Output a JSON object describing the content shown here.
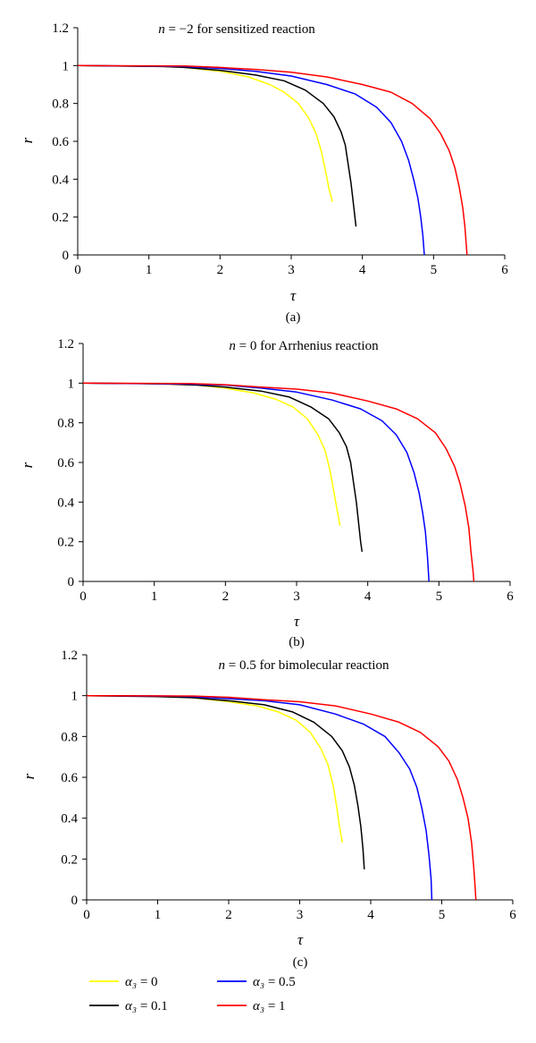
{
  "chart_data": [
    {
      "type": "line",
      "title": "n = −2 for sensitized reaction",
      "title_parts": {
        "var": "n",
        "rest": " = −2 for sensitized reaction"
      },
      "xlabel": "τ",
      "ylabel": "r",
      "xlim": [
        0,
        6
      ],
      "ylim": [
        0,
        1.2
      ],
      "xticks": [
        "0",
        "1",
        "2",
        "3",
        "4",
        "5",
        "6"
      ],
      "yticks": [
        "0",
        "0.2",
        "0.4",
        "0.6",
        "0.8",
        "1",
        "1.2"
      ],
      "caption": "(a)",
      "grid": false,
      "series": [
        {
          "color": "#ffff00",
          "points": [
            [
              0,
              1
            ],
            [
              1.2,
              0.995
            ],
            [
              1.5,
              0.99
            ],
            [
              2.0,
              0.97
            ],
            [
              2.4,
              0.94
            ],
            [
              2.7,
              0.9
            ],
            [
              2.9,
              0.86
            ],
            [
              3.1,
              0.8
            ],
            [
              3.25,
              0.72
            ],
            [
              3.35,
              0.64
            ],
            [
              3.42,
              0.55
            ],
            [
              3.48,
              0.45
            ],
            [
              3.53,
              0.35
            ],
            [
              3.58,
              0.28
            ]
          ]
        },
        {
          "color": "#000000",
          "points": [
            [
              0,
              1
            ],
            [
              1.2,
              0.995
            ],
            [
              1.5,
              0.99
            ],
            [
              2.0,
              0.975
            ],
            [
              2.5,
              0.95
            ],
            [
              2.9,
              0.92
            ],
            [
              3.2,
              0.87
            ],
            [
              3.45,
              0.8
            ],
            [
              3.6,
              0.73
            ],
            [
              3.7,
              0.65
            ],
            [
              3.76,
              0.58
            ],
            [
              3.8,
              0.48
            ],
            [
              3.84,
              0.38
            ],
            [
              3.88,
              0.25
            ],
            [
              3.91,
              0.15
            ]
          ]
        },
        {
          "color": "#0000ff",
          "points": [
            [
              0,
              1
            ],
            [
              1.5,
              0.995
            ],
            [
              2.0,
              0.985
            ],
            [
              2.5,
              0.97
            ],
            [
              3.0,
              0.945
            ],
            [
              3.5,
              0.9
            ],
            [
              3.9,
              0.85
            ],
            [
              4.2,
              0.78
            ],
            [
              4.4,
              0.7
            ],
            [
              4.55,
              0.6
            ],
            [
              4.65,
              0.5
            ],
            [
              4.72,
              0.4
            ],
            [
              4.78,
              0.3
            ],
            [
              4.82,
              0.2
            ],
            [
              4.85,
              0.1
            ],
            [
              4.87,
              0
            ]
          ]
        },
        {
          "color": "#ff0000",
          "points": [
            [
              0,
              1
            ],
            [
              1.5,
              0.998
            ],
            [
              2.0,
              0.99
            ],
            [
              2.5,
              0.98
            ],
            [
              3.0,
              0.965
            ],
            [
              3.5,
              0.94
            ],
            [
              4.0,
              0.9
            ],
            [
              4.4,
              0.86
            ],
            [
              4.7,
              0.8
            ],
            [
              4.95,
              0.72
            ],
            [
              5.1,
              0.64
            ],
            [
              5.22,
              0.55
            ],
            [
              5.3,
              0.46
            ],
            [
              5.36,
              0.36
            ],
            [
              5.41,
              0.25
            ],
            [
              5.44,
              0.15
            ],
            [
              5.46,
              0.05
            ],
            [
              5.47,
              0
            ]
          ]
        }
      ]
    },
    {
      "type": "line",
      "title": "n = 0 for Arrhenius reaction",
      "title_parts": {
        "var": "n",
        "rest": " = 0 for Arrhenius reaction"
      },
      "xlabel": "τ",
      "ylabel": "r",
      "xlim": [
        0,
        6
      ],
      "ylim": [
        0,
        1.2
      ],
      "xticks": [
        "0",
        "1",
        "2",
        "3",
        "4",
        "5",
        "6"
      ],
      "yticks": [
        "0",
        "0.2",
        "0.4",
        "0.6",
        "0.8",
        "1",
        "1.2"
      ],
      "caption": "(b)",
      "grid": false,
      "series": [
        {
          "color": "#ffff00",
          "points": [
            [
              0,
              1
            ],
            [
              0.8,
              0.998
            ],
            [
              1.2,
              0.995
            ],
            [
              1.6,
              0.99
            ],
            [
              2.0,
              0.975
            ],
            [
              2.4,
              0.95
            ],
            [
              2.7,
              0.92
            ],
            [
              2.95,
              0.88
            ],
            [
              3.15,
              0.82
            ],
            [
              3.3,
              0.74
            ],
            [
              3.4,
              0.66
            ],
            [
              3.47,
              0.56
            ],
            [
              3.52,
              0.46
            ],
            [
              3.57,
              0.36
            ],
            [
              3.61,
              0.28
            ]
          ]
        },
        {
          "color": "#000000",
          "points": [
            [
              0,
              1
            ],
            [
              0.8,
              0.998
            ],
            [
              1.2,
              0.995
            ],
            [
              1.6,
              0.99
            ],
            [
              2.0,
              0.98
            ],
            [
              2.5,
              0.96
            ],
            [
              2.9,
              0.93
            ],
            [
              3.2,
              0.88
            ],
            [
              3.45,
              0.82
            ],
            [
              3.6,
              0.75
            ],
            [
              3.7,
              0.68
            ],
            [
              3.76,
              0.6
            ],
            [
              3.8,
              0.5
            ],
            [
              3.84,
              0.4
            ],
            [
              3.87,
              0.3
            ],
            [
              3.9,
              0.2
            ],
            [
              3.92,
              0.15
            ]
          ]
        },
        {
          "color": "#0000ff",
          "points": [
            [
              0,
              1
            ],
            [
              1.5,
              0.995
            ],
            [
              2.0,
              0.99
            ],
            [
              2.5,
              0.975
            ],
            [
              3.0,
              0.955
            ],
            [
              3.5,
              0.915
            ],
            [
              3.9,
              0.87
            ],
            [
              4.2,
              0.81
            ],
            [
              4.4,
              0.74
            ],
            [
              4.55,
              0.65
            ],
            [
              4.65,
              0.55
            ],
            [
              4.72,
              0.45
            ],
            [
              4.77,
              0.35
            ],
            [
              4.81,
              0.25
            ],
            [
              4.84,
              0.12
            ],
            [
              4.86,
              0
            ]
          ]
        },
        {
          "color": "#ff0000",
          "points": [
            [
              0,
              1
            ],
            [
              1.5,
              0.998
            ],
            [
              2.0,
              0.992
            ],
            [
              2.5,
              0.98
            ],
            [
              3.0,
              0.97
            ],
            [
              3.5,
              0.95
            ],
            [
              4.0,
              0.91
            ],
            [
              4.4,
              0.87
            ],
            [
              4.7,
              0.82
            ],
            [
              4.95,
              0.75
            ],
            [
              5.1,
              0.67
            ],
            [
              5.22,
              0.58
            ],
            [
              5.3,
              0.49
            ],
            [
              5.37,
              0.38
            ],
            [
              5.42,
              0.27
            ],
            [
              5.45,
              0.15
            ],
            [
              5.48,
              0.05
            ],
            [
              5.49,
              0
            ]
          ]
        }
      ]
    },
    {
      "type": "line",
      "title": "n = 0.5 for bimolecular reaction",
      "title_parts": {
        "var": "n",
        "rest": " = 0.5 for bimolecular reaction"
      },
      "xlabel": "τ",
      "ylabel": "r",
      "xlim": [
        0,
        6
      ],
      "ylim": [
        0,
        1.2
      ],
      "xticks": [
        "0",
        "1",
        "2",
        "3",
        "4",
        "5",
        "6"
      ],
      "yticks": [
        "0",
        "0.2",
        "0.4",
        "0.6",
        "0.8",
        "1",
        "1.2"
      ],
      "caption": "(c)",
      "grid": false,
      "series": [
        {
          "color": "#ffff00",
          "points": [
            [
              0,
              1
            ],
            [
              1.0,
              0.998
            ],
            [
              1.5,
              0.99
            ],
            [
              2.0,
              0.97
            ],
            [
              2.4,
              0.95
            ],
            [
              2.7,
              0.92
            ],
            [
              2.95,
              0.88
            ],
            [
              3.15,
              0.82
            ],
            [
              3.3,
              0.74
            ],
            [
              3.4,
              0.66
            ],
            [
              3.47,
              0.56
            ],
            [
              3.52,
              0.46
            ],
            [
              3.56,
              0.36
            ],
            [
              3.6,
              0.28
            ]
          ]
        },
        {
          "color": "#000000",
          "points": [
            [
              0,
              1
            ],
            [
              1.0,
              0.995
            ],
            [
              1.5,
              0.99
            ],
            [
              2.0,
              0.975
            ],
            [
              2.5,
              0.955
            ],
            [
              2.9,
              0.92
            ],
            [
              3.2,
              0.87
            ],
            [
              3.45,
              0.8
            ],
            [
              3.6,
              0.73
            ],
            [
              3.7,
              0.65
            ],
            [
              3.77,
              0.56
            ],
            [
              3.82,
              0.46
            ],
            [
              3.86,
              0.36
            ],
            [
              3.89,
              0.25
            ],
            [
              3.91,
              0.15
            ]
          ]
        },
        {
          "color": "#0000ff",
          "points": [
            [
              0,
              1
            ],
            [
              1.2,
              0.998
            ],
            [
              1.5,
              0.995
            ],
            [
              2.0,
              0.985
            ],
            [
              2.5,
              0.975
            ],
            [
              3.0,
              0.955
            ],
            [
              3.5,
              0.91
            ],
            [
              3.9,
              0.86
            ],
            [
              4.2,
              0.8
            ],
            [
              4.4,
              0.72
            ],
            [
              4.55,
              0.64
            ],
            [
              4.65,
              0.55
            ],
            [
              4.72,
              0.45
            ],
            [
              4.78,
              0.34
            ],
            [
              4.82,
              0.22
            ],
            [
              4.85,
              0.1
            ],
            [
              4.86,
              0
            ]
          ]
        },
        {
          "color": "#ff0000",
          "points": [
            [
              0,
              1
            ],
            [
              1.5,
              0.998
            ],
            [
              2.0,
              0.992
            ],
            [
              2.5,
              0.98
            ],
            [
              3.0,
              0.97
            ],
            [
              3.5,
              0.95
            ],
            [
              4.0,
              0.91
            ],
            [
              4.4,
              0.87
            ],
            [
              4.7,
              0.82
            ],
            [
              4.95,
              0.75
            ],
            [
              5.1,
              0.68
            ],
            [
              5.22,
              0.59
            ],
            [
              5.3,
              0.5
            ],
            [
              5.37,
              0.4
            ],
            [
              5.42,
              0.28
            ],
            [
              5.45,
              0.16
            ],
            [
              5.47,
              0.06
            ],
            [
              5.48,
              0
            ]
          ]
        }
      ]
    }
  ],
  "legend": {
    "entries": [
      {
        "color": "#ffff00",
        "label": "α₃ = 0"
      },
      {
        "color": "#000000",
        "label": "α₃ = 0.1"
      },
      {
        "color": "#0000ff",
        "label": "α₃ = 0.5"
      },
      {
        "color": "#ff0000",
        "label": "α₃ = 1"
      }
    ]
  }
}
